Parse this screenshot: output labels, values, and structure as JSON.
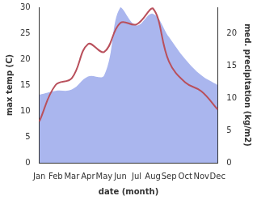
{
  "chart_data": {
    "type": "line",
    "x_label": "date (month)",
    "y_label": "max temp (C)",
    "y2_label": "med. precipitation (kg/m2)",
    "categories": [
      "Jan",
      "Feb",
      "Mar",
      "Apr",
      "May",
      "Jun",
      "Jul",
      "Aug",
      "Sep",
      "Oct",
      "Nov",
      "Dec"
    ],
    "series": [
      {
        "name": "max temp (C)",
        "type": "line",
        "color": "#b9505c",
        "values": [
          8,
          15,
          16.3,
          22.9,
          21.4,
          27,
          26.7,
          29.8,
          19.5,
          15.5,
          13.8,
          10.3
        ]
      },
      {
        "name": "med. precipitation (kg/m2)",
        "type": "area",
        "color": "#aab6ee",
        "axis": "y2",
        "values": [
          10.5,
          11.1,
          11.3,
          13.3,
          13.5,
          24,
          21.2,
          23,
          19.4,
          16,
          13.5,
          12
        ]
      }
    ],
    "ylim": [
      0,
      30
    ],
    "yticks": [
      0,
      5,
      10,
      15,
      20,
      25,
      30
    ],
    "y2lim": [
      0,
      24
    ],
    "y2ticks": [
      0,
      5,
      10,
      15,
      20
    ],
    "grid": false
  }
}
